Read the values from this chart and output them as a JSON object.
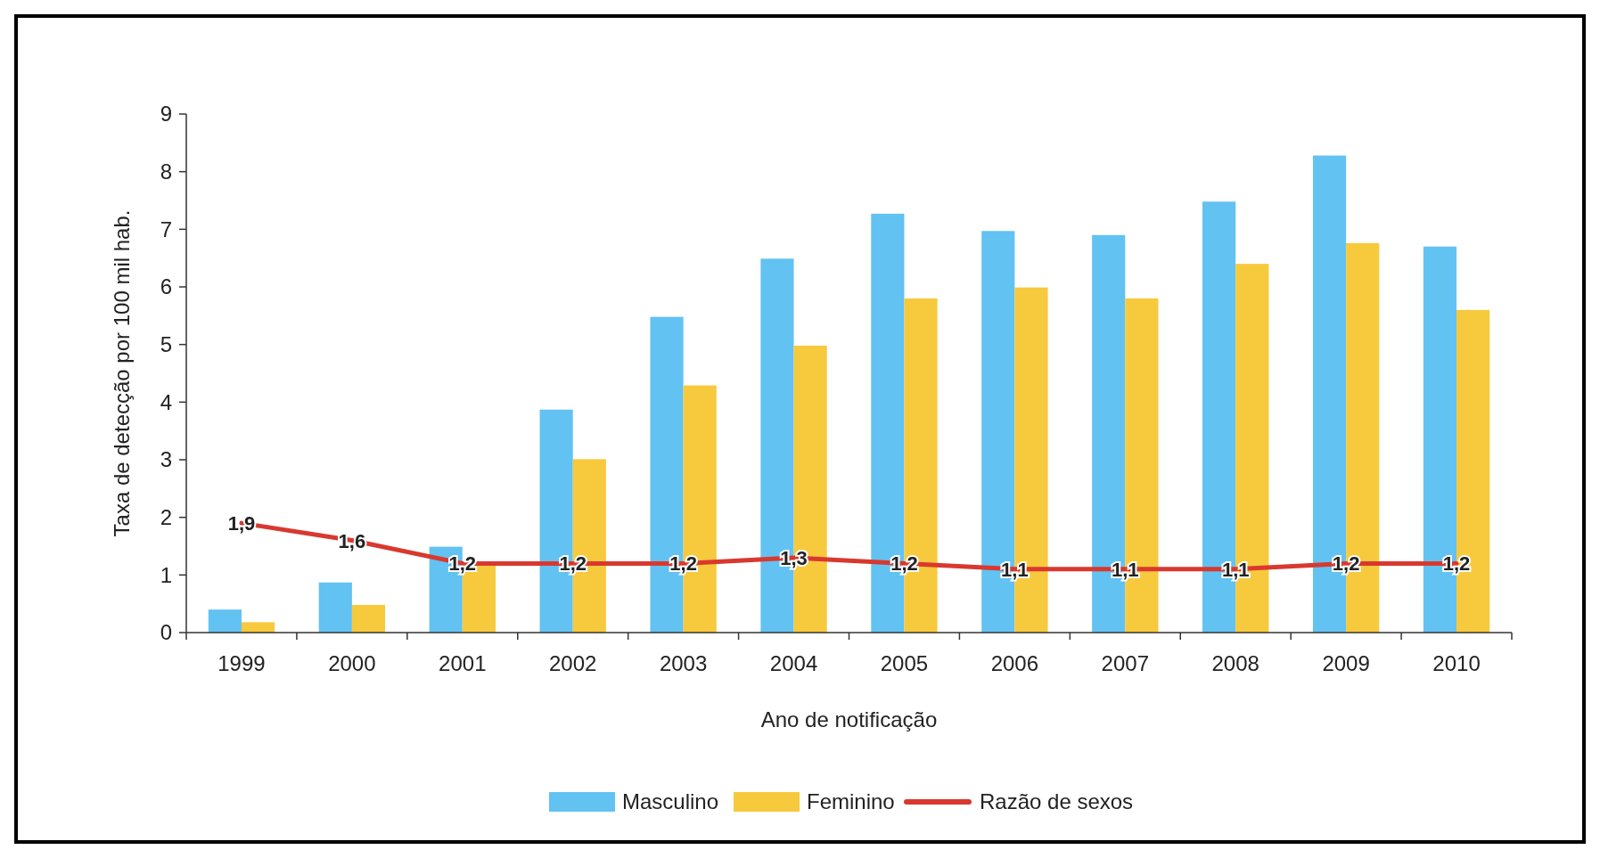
{
  "chart_data": {
    "type": "bar",
    "xlabel": "Ano de notificação",
    "ylabel": "Taxa de detecção por 100 mil hab.",
    "categories": [
      "1999",
      "2000",
      "2001",
      "2002",
      "2003",
      "2004",
      "2005",
      "2006",
      "2007",
      "2008",
      "2009",
      "2010"
    ],
    "series": [
      {
        "name": "Masculino",
        "color": "#62c2f2",
        "values": [
          0.4,
          0.87,
          1.49,
          3.87,
          5.48,
          6.49,
          7.27,
          6.97,
          6.9,
          7.48,
          8.28,
          6.7
        ]
      },
      {
        "name": "Feminino",
        "color": "#f7c93d",
        "values": [
          0.18,
          0.48,
          1.2,
          3.01,
          4.29,
          4.98,
          5.8,
          5.99,
          5.8,
          6.4,
          6.76,
          5.6
        ]
      },
      {
        "name": "Razão de sexos",
        "type": "line",
        "color": "#d9382f",
        "values": [
          1.9,
          1.6,
          1.2,
          1.2,
          1.2,
          1.3,
          1.2,
          1.1,
          1.1,
          1.1,
          1.2,
          1.2
        ],
        "value_labels": [
          "1,9",
          "1,6",
          "1,2",
          "1,2",
          "1,2",
          "1,3",
          "1,2",
          "1,1",
          "1,1",
          "1,1",
          "1,2",
          "1,2"
        ]
      }
    ],
    "ylim": [
      0,
      9
    ],
    "yticks": [
      0,
      1,
      2,
      3,
      4,
      5,
      6,
      7,
      8,
      9
    ],
    "legend": "bottom",
    "grid": false,
    "marker": "none",
    "line_style": "solid"
  }
}
